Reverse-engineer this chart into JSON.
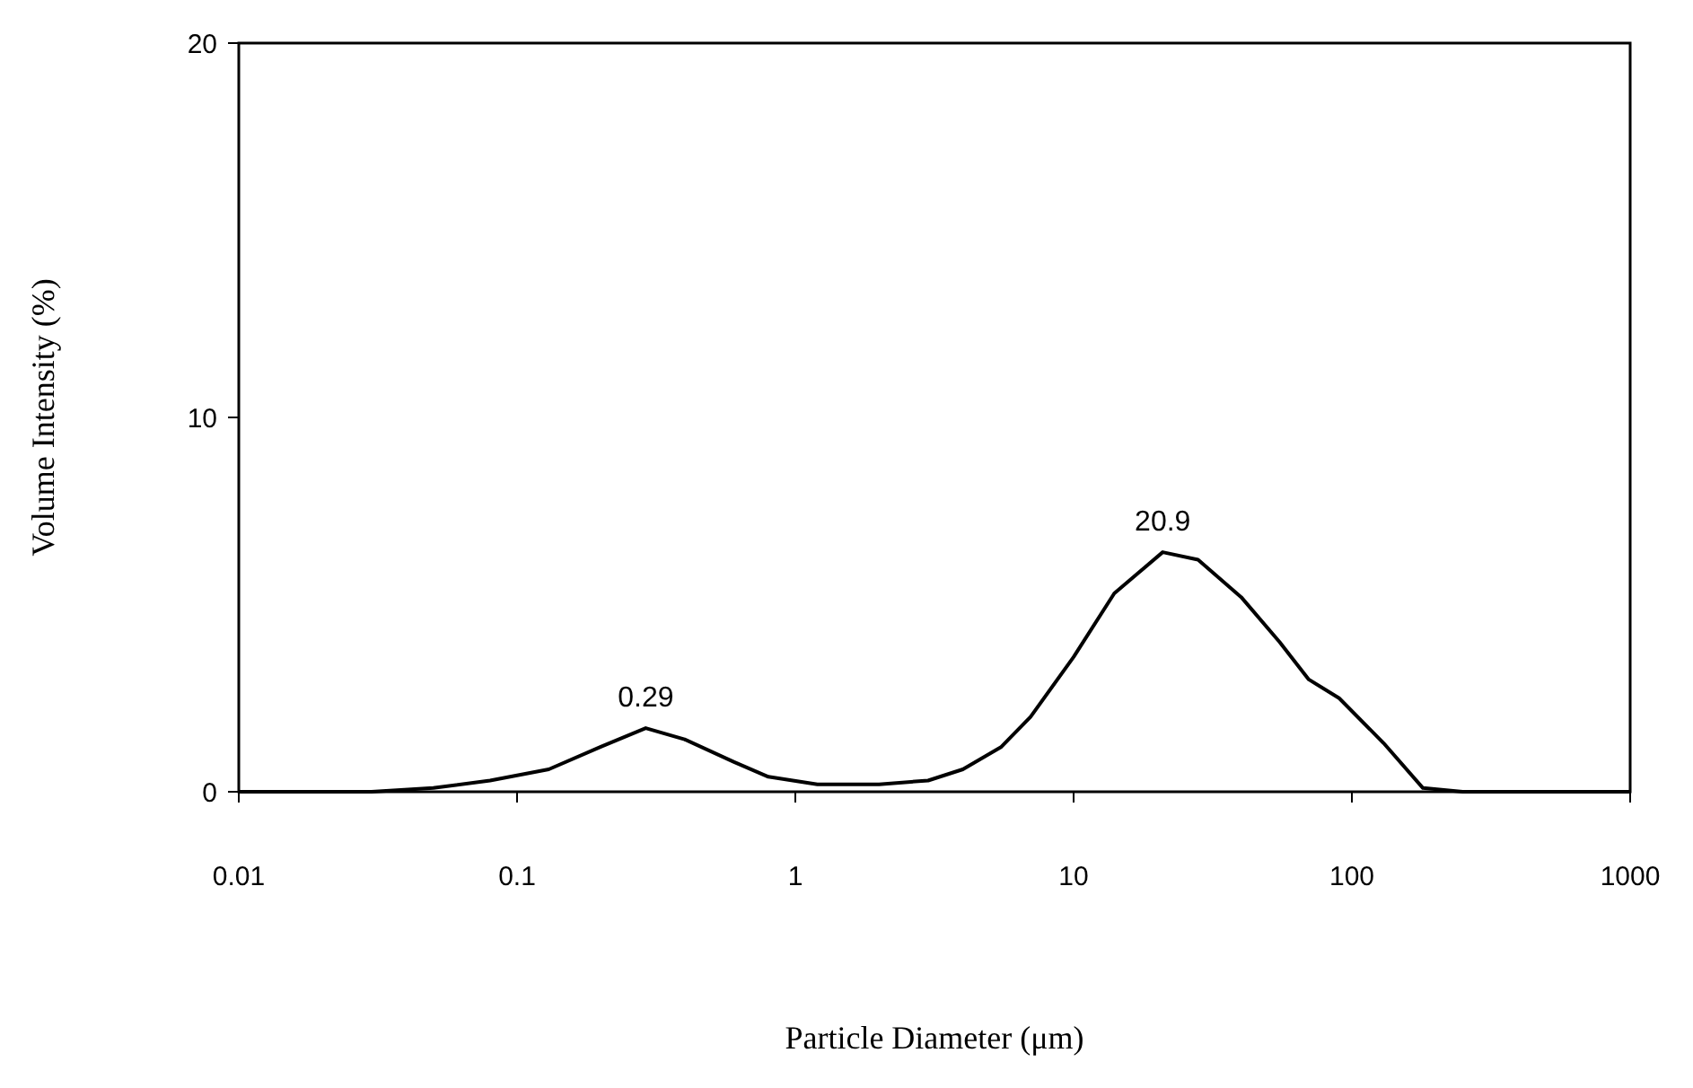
{
  "chart_data": {
    "type": "line",
    "xlabel": "Particle Diameter (μm)",
    "ylabel": "Volume Intensity (%)",
    "log": "x",
    "xlim": [
      0.01,
      1000
    ],
    "xticks": [
      0.01,
      0.1,
      1,
      10,
      100,
      1000
    ],
    "ylim": [
      0,
      20
    ],
    "yticks": [
      0,
      10,
      20
    ],
    "grid": false,
    "marker": "none",
    "line_style": "solid",
    "series": [
      {
        "color": "#000000",
        "x": [
          0.01,
          0.03,
          0.05,
          0.08,
          0.13,
          0.2,
          0.29,
          0.4,
          0.6,
          0.8,
          1.2,
          2,
          3,
          4,
          5.5,
          7,
          10,
          14,
          20.9,
          28,
          40,
          55,
          70,
          90,
          130,
          180,
          250,
          1000
        ],
        "values": [
          0,
          0,
          0.1,
          0.3,
          0.6,
          1.2,
          1.7,
          1.4,
          0.8,
          0.4,
          0.2,
          0.2,
          0.3,
          0.6,
          1.2,
          2,
          3.6,
          5.3,
          6.4,
          6.2,
          5.2,
          4,
          3,
          2.5,
          1.3,
          0.1,
          0,
          0
        ]
      }
    ],
    "annotations": [
      {
        "text": "0.29",
        "x": 0.29,
        "y": 1.7
      },
      {
        "text": "20.9",
        "x": 20.9,
        "y": 6.4
      }
    ]
  }
}
